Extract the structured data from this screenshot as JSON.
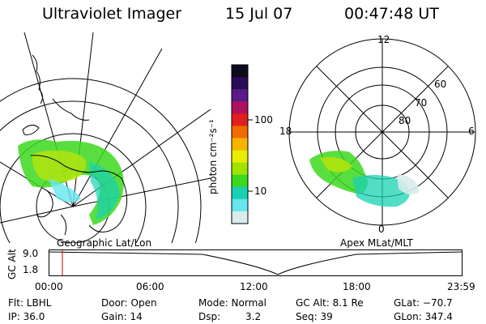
{
  "header": {
    "instrument": "Ultraviolet Imager",
    "date": "15 Jul 07",
    "time": "00:47:48 UT"
  },
  "geo_panel": {
    "label": "Geographic Lat/Lon"
  },
  "apex_panel": {
    "label": "Apex MLat/MLT",
    "mlt_labels": {
      "top": "12",
      "left": "18",
      "right": "6",
      "bottom": "0"
    },
    "lat_labels": [
      "60",
      "70",
      "80"
    ]
  },
  "colorbar": {
    "unit_label": "photon cm⁻²s⁻¹",
    "ticks": [
      "100",
      "10"
    ],
    "colors": [
      "#0b0b1e",
      "#2a0b55",
      "#5a1a8a",
      "#b01060",
      "#e0201e",
      "#f26a00",
      "#f4b400",
      "#e8ec00",
      "#9ee400",
      "#3cd81e",
      "#18d2b4",
      "#66e6f0",
      "#d8ecec"
    ]
  },
  "timeline": {
    "axis_label": "GC Alt",
    "y_ticks": [
      "9.0",
      "1.8"
    ],
    "x_ticks": [
      "00:00",
      "06:00",
      "12:00",
      "18:00",
      "23:59"
    ],
    "current_time_hours": 0.8,
    "marker_color": "#cc0000"
  },
  "info": {
    "filter": "Flt: LBHL",
    "ip": "IP: 36.0",
    "door": "Door: Open",
    "gain": "Gain: 14",
    "mode": "Mode: Normal",
    "dsp_label": "Dsp:",
    "dsp_value": "3.2",
    "gc_alt": "GC Alt: 8.1 Re",
    "seq": "Seq: 39",
    "glat": "GLat: −70.7",
    "glon": "GLon: 347.4"
  }
}
